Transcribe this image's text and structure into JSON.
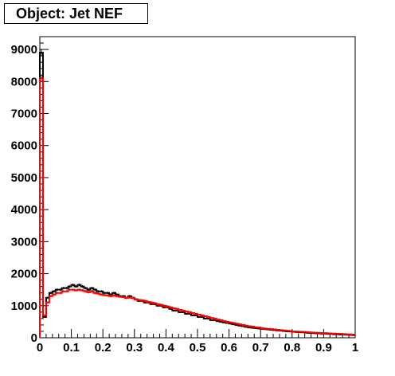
{
  "title": "Object: Jet NEF",
  "colors": {
    "background": "#ffffff",
    "frame": "#000000",
    "series_black": "#000000",
    "series_red": "#ff0000"
  },
  "chart_data": {
    "type": "line",
    "style": "step histogram",
    "title": "Object: Jet NEF",
    "xlabel": "",
    "ylabel": "",
    "xlim": [
      0,
      1
    ],
    "ylim": [
      0,
      9400
    ],
    "xticks": [
      0,
      0.1,
      0.2,
      0.3,
      0.4,
      0.5,
      0.6,
      0.7,
      0.8,
      0.9,
      1
    ],
    "xtick_labels": [
      "0",
      "0.1",
      "0.2",
      "0.3",
      "0.4",
      "0.5",
      "0.6",
      "0.7",
      "0.8",
      "0.9",
      "1"
    ],
    "yticks": [
      0,
      1000,
      2000,
      3000,
      4000,
      5000,
      6000,
      7000,
      8000,
      9000
    ],
    "ytick_labels": [
      "0",
      "1000",
      "2000",
      "3000",
      "4000",
      "5000",
      "6000",
      "7000",
      "8000",
      "9000"
    ],
    "grid": false,
    "legend": "none",
    "bin_width": 0.01,
    "series": [
      {
        "color": "#000000",
        "values": [
          8900,
          650,
          1250,
          1400,
          1450,
          1500,
          1500,
          1550,
          1550,
          1600,
          1650,
          1600,
          1650,
          1600,
          1550,
          1500,
          1550,
          1500,
          1450,
          1450,
          1400,
          1400,
          1350,
          1400,
          1350,
          1300,
          1300,
          1250,
          1300,
          1250,
          1200,
          1150,
          1150,
          1100,
          1100,
          1050,
          1050,
          1000,
          1000,
          950,
          950,
          900,
          850,
          850,
          800,
          800,
          750,
          750,
          700,
          700,
          650,
          650,
          600,
          600,
          550,
          550,
          520,
          500,
          480,
          460,
          440,
          420,
          400,
          380,
          360,
          340,
          320,
          310,
          300,
          290,
          280,
          270,
          260,
          250,
          240,
          230,
          220,
          210,
          200,
          200,
          190,
          180,
          170,
          170,
          160,
          150,
          150,
          140,
          140,
          130,
          130,
          120,
          120,
          110,
          110,
          100,
          100,
          95,
          90,
          85
        ]
      },
      {
        "color": "#ff0000",
        "values": [
          8100,
          700,
          1100,
          1300,
          1350,
          1400,
          1400,
          1450,
          1450,
          1500,
          1500,
          1480,
          1500,
          1480,
          1450,
          1420,
          1450,
          1400,
          1380,
          1350,
          1330,
          1320,
          1300,
          1320,
          1300,
          1280,
          1270,
          1250,
          1260,
          1240,
          1200,
          1180,
          1170,
          1150,
          1120,
          1100,
          1080,
          1050,
          1030,
          1000,
          980,
          950,
          920,
          900,
          870,
          850,
          820,
          800,
          770,
          750,
          720,
          700,
          670,
          650,
          620,
          600,
          570,
          550,
          520,
          500,
          480,
          460,
          440,
          420,
          400,
          380,
          360,
          350,
          330,
          320,
          300,
          290,
          280,
          270,
          260,
          250,
          240,
          230,
          220,
          210,
          200,
          195,
          190,
          185,
          180,
          170,
          165,
          160,
          155,
          150,
          145,
          140,
          135,
          130,
          125,
          120,
          115,
          110,
          105,
          100
        ]
      }
    ]
  }
}
